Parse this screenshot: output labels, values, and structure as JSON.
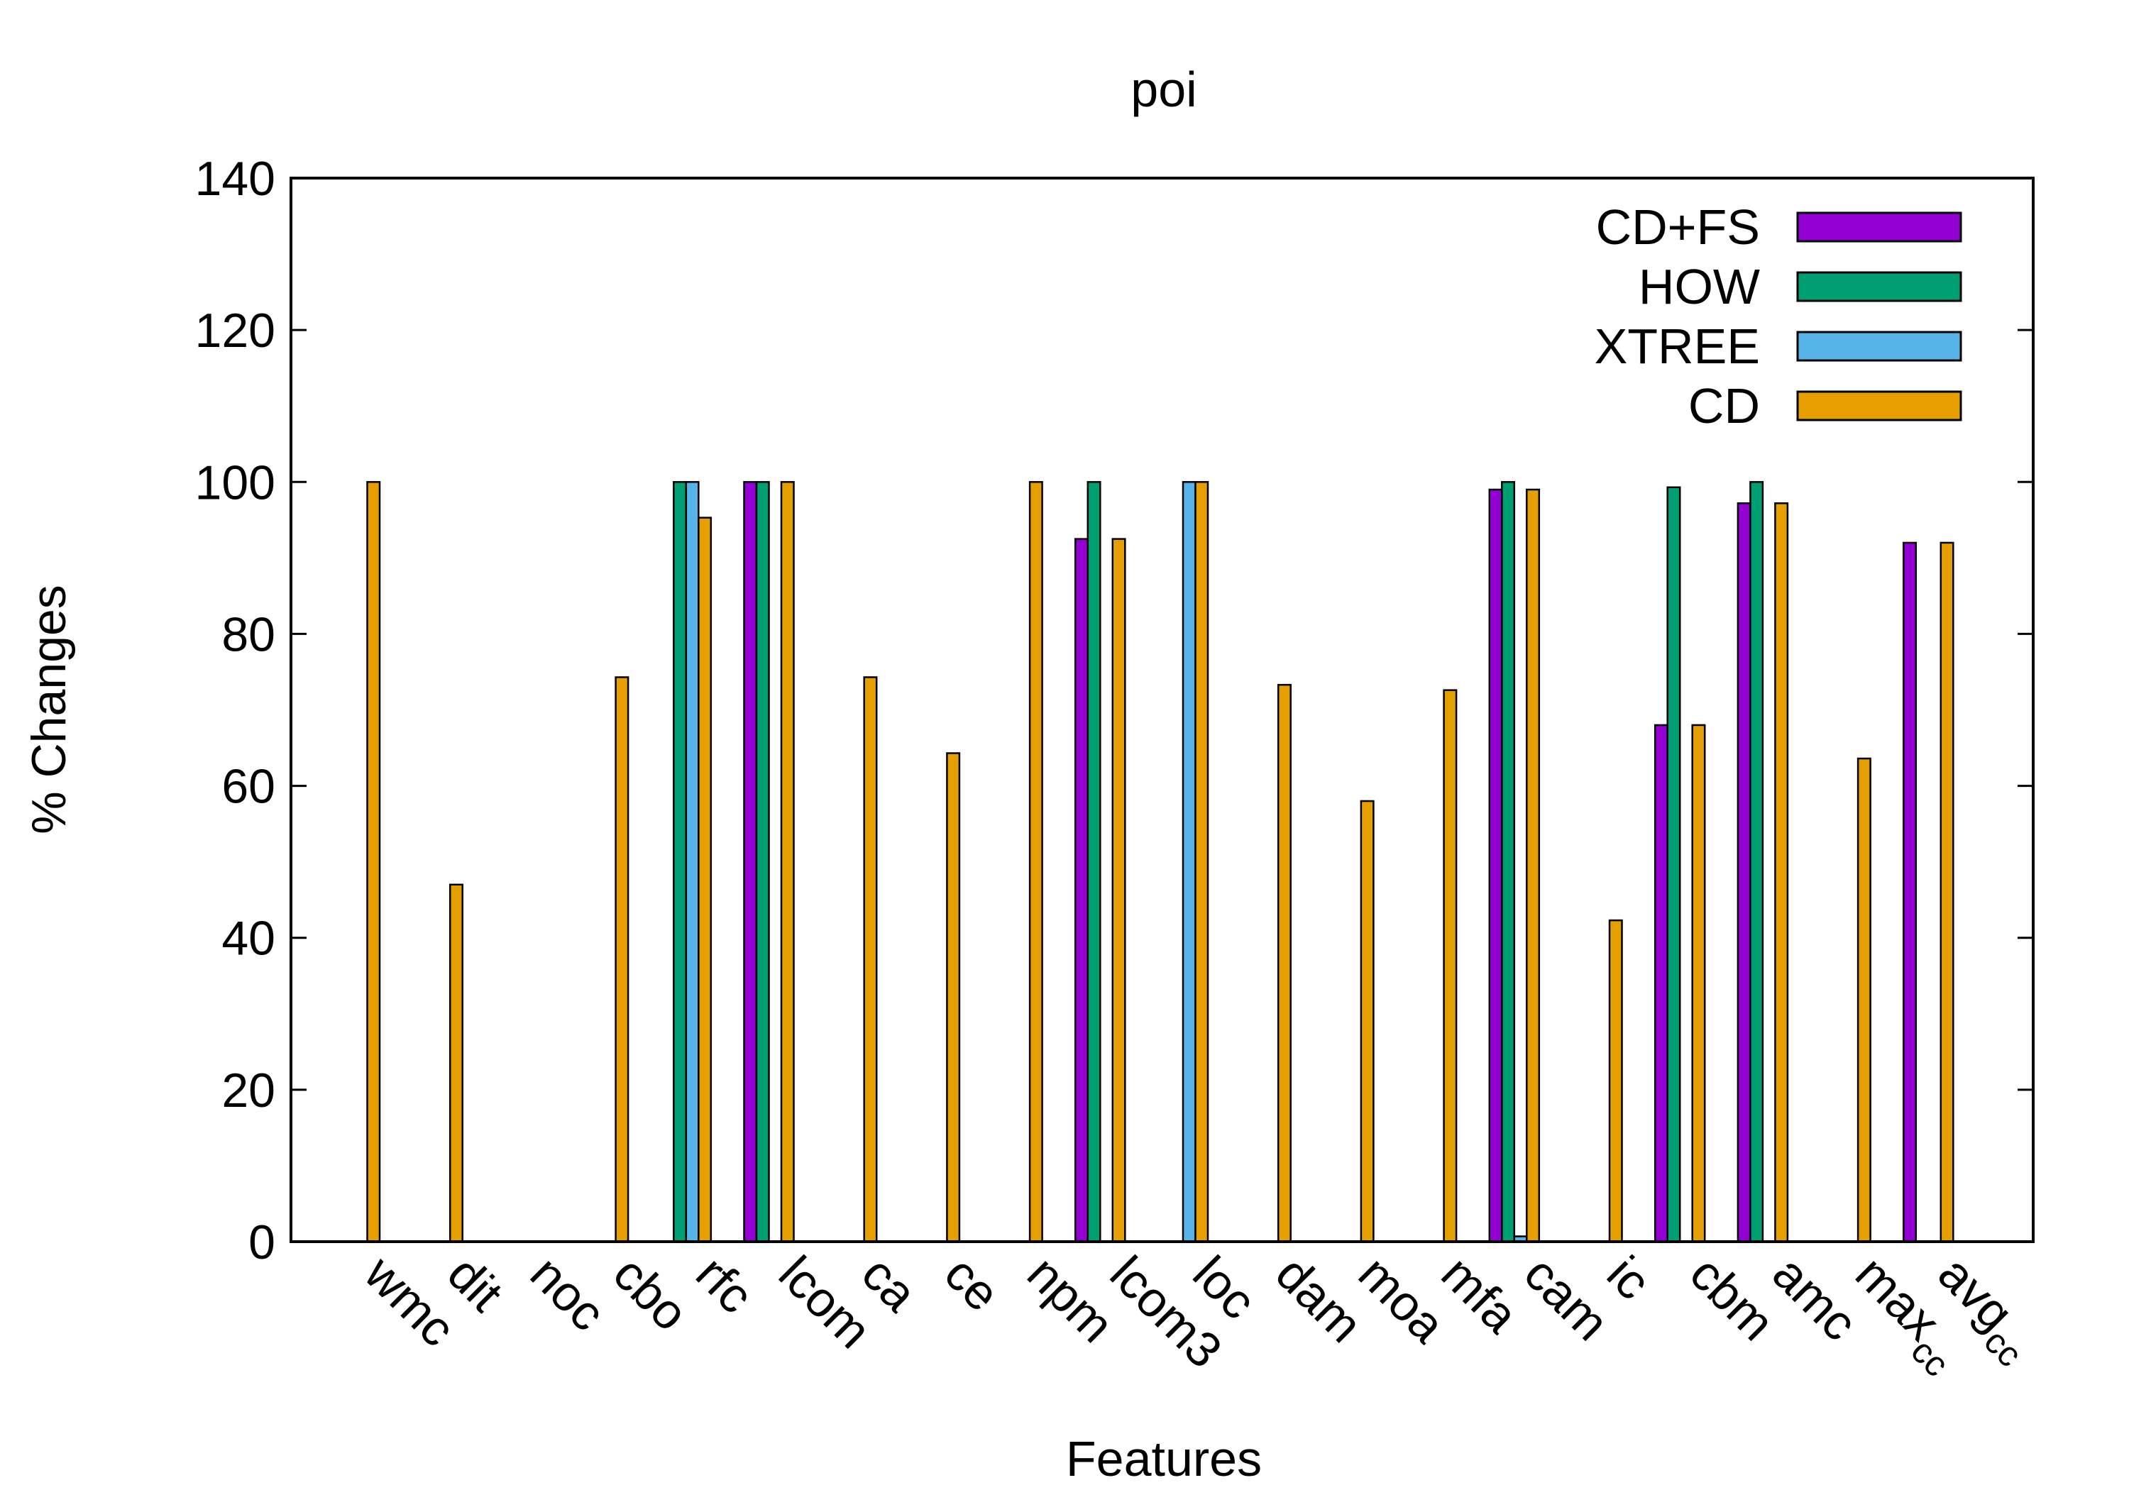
{
  "chart_data": {
    "type": "bar",
    "title": "poi",
    "xlabel": "Features",
    "ylabel": "% Changes",
    "ylim": [
      0,
      140
    ],
    "yticks": [
      0,
      20,
      40,
      60,
      80,
      100,
      120,
      140
    ],
    "legend_position": "top-right",
    "grid": false,
    "categories": [
      {
        "base": "wmc",
        "sub": ""
      },
      {
        "base": "dit",
        "sub": ""
      },
      {
        "base": "noc",
        "sub": ""
      },
      {
        "base": "cbo",
        "sub": ""
      },
      {
        "base": "rfc",
        "sub": ""
      },
      {
        "base": "lcom",
        "sub": ""
      },
      {
        "base": "ca",
        "sub": ""
      },
      {
        "base": "ce",
        "sub": ""
      },
      {
        "base": "npm",
        "sub": ""
      },
      {
        "base": "lcom3",
        "sub": ""
      },
      {
        "base": "loc",
        "sub": ""
      },
      {
        "base": "dam",
        "sub": ""
      },
      {
        "base": "moa",
        "sub": ""
      },
      {
        "base": "mfa",
        "sub": ""
      },
      {
        "base": "cam",
        "sub": ""
      },
      {
        "base": "ic",
        "sub": ""
      },
      {
        "base": "cbm",
        "sub": ""
      },
      {
        "base": "amc",
        "sub": ""
      },
      {
        "base": "max",
        "sub": "cc"
      },
      {
        "base": "avg",
        "sub": "cc"
      }
    ],
    "series": [
      {
        "name": "CD+FS",
        "color": "#9400d3",
        "values": [
          0,
          0,
          0,
          0,
          0,
          100,
          0,
          0,
          0,
          92.5,
          0,
          0,
          0,
          0,
          99,
          0,
          68,
          97.2,
          0,
          92
        ]
      },
      {
        "name": "HOW",
        "color": "#009e73",
        "values": [
          0,
          0,
          0,
          0,
          100,
          100,
          0,
          0,
          0,
          100,
          0,
          0,
          0,
          0,
          100,
          0,
          99.3,
          100,
          0,
          0
        ]
      },
      {
        "name": "XTREE",
        "color": "#56b4e9",
        "values": [
          0,
          0,
          0,
          0,
          100,
          0,
          0,
          0,
          0,
          0,
          100,
          0,
          0,
          0,
          0.7,
          0,
          0,
          0,
          0,
          0
        ]
      },
      {
        "name": "CD",
        "color": "#e69f00",
        "values": [
          100,
          47,
          0,
          74.3,
          95.3,
          100,
          74.3,
          64.3,
          100,
          92.5,
          100,
          73.3,
          58,
          72.6,
          99,
          42.3,
          68,
          97.2,
          63.6,
          92
        ]
      }
    ]
  }
}
